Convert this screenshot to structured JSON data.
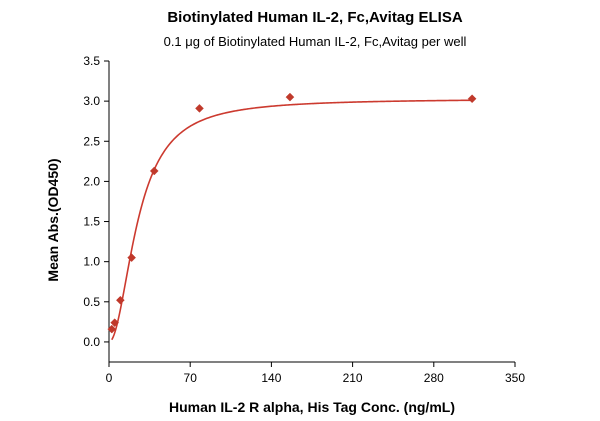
{
  "chart_data": {
    "type": "scatter",
    "title": "Biotinylated Human IL-2, Fc,Avitag ELISA",
    "subtitle": "0.1 μg of Biotinylated Human IL-2, Fc,Avitag per well",
    "xlabel": "Human IL-2 R alpha, His Tag Conc. (ng/mL)",
    "ylabel": "Mean Abs.(OD450)",
    "xlim": [
      0,
      350
    ],
    "ylim": [
      -0.25,
      3.5
    ],
    "x_ticks": [
      0,
      70,
      140,
      210,
      280,
      350
    ],
    "y_ticks": [
      0.0,
      0.5,
      1.0,
      1.5,
      2.0,
      2.5,
      3.0,
      3.5
    ],
    "x_tick_labels": [
      "0",
      "70",
      "140",
      "210",
      "280",
      "350"
    ],
    "y_tick_labels": [
      "0.0",
      "0.5",
      "1.0",
      "1.5",
      "2.0",
      "2.5",
      "3.0",
      "3.5"
    ],
    "series": [
      {
        "points": [
          {
            "x": 2.4,
            "y": 0.16
          },
          {
            "x": 4.9,
            "y": 0.24
          },
          {
            "x": 9.8,
            "y": 0.52
          },
          {
            "x": 19.5,
            "y": 1.05
          },
          {
            "x": 39,
            "y": 2.13
          },
          {
            "x": 78,
            "y": 2.91
          },
          {
            "x": 156,
            "y": 3.05
          },
          {
            "x": 313,
            "y": 3.03
          }
        ],
        "fit": {
          "type": "4PL",
          "bottom": 0.0,
          "top": 3.03,
          "ec50": 25,
          "hill": 2.0
        }
      }
    ],
    "colors": {
      "marker": "#c0392b",
      "line": "#cc3a2f",
      "axis": "#000000"
    },
    "grid": false,
    "legend": "none"
  }
}
